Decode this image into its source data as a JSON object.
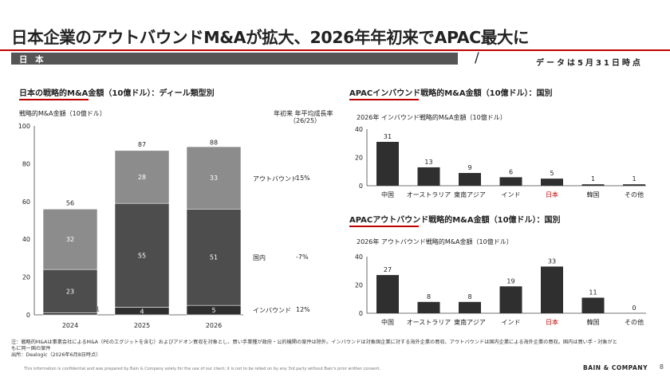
{
  "header": {
    "title": "日本企業のアウトバウンドM&Aが拡大、2026年年初来でAPAC最大に",
    "country_label": "日 本",
    "as_of": "データは5月31日時点"
  },
  "left_panel": {
    "title": "日本の戦略的M&A金額（10億ドル）：ディール類型別",
    "unit_label": "戦略的M&A金額（10億ドル）",
    "growth_header": "年初来 年平均成長率",
    "growth_subheader": "（26/25）",
    "growth_rows": [
      {
        "label": "アウトバウンド",
        "value": "15%"
      },
      {
        "label": "国内",
        "value": "-7%"
      },
      {
        "label": "インバウンド",
        "value": "12%"
      }
    ]
  },
  "chart_data": [
    {
      "type": "bar",
      "stacked": true,
      "title": "日本の戦略的M&A金額（10億ドル）：ディール類型別",
      "ylabel": "戦略的M&A金額（10億ドル）",
      "ylim": [
        0,
        100
      ],
      "yticks": [
        "0",
        "20",
        "40",
        "60",
        "80",
        "100"
      ],
      "categories": [
        "2024",
        "2025",
        "2026"
      ],
      "series": [
        {
          "name": "インバウンド",
          "values": [
            1,
            4,
            5
          ],
          "color": "#2f2f2f"
        },
        {
          "name": "国内",
          "values": [
            23,
            55,
            51
          ],
          "color": "#4d4d4d"
        },
        {
          "name": "アウトバウンド",
          "values": [
            32,
            28,
            33
          ],
          "color": "#8c8c8c"
        }
      ],
      "totals": [
        56,
        87,
        88
      ]
    },
    {
      "type": "bar",
      "title": "APACインバウンド戦略的M&A金額（10億ドル）：国別",
      "ylabel": "2026年 インバウンド戦略的M&A金額（10億ドル）",
      "ylim": [
        0,
        40
      ],
      "yticks": [
        "0",
        "20",
        "40"
      ],
      "categories": [
        "中国",
        "オーストラリア",
        "東南アジア",
        "インド",
        "日本",
        "韓国",
        "その他"
      ],
      "values": [
        31,
        13,
        9,
        6,
        5,
        1,
        1
      ],
      "highlight": "日本"
    },
    {
      "type": "bar",
      "title": "APACアウトバウンド戦略的M&A金額（10億ドル）：国別",
      "ylabel": "2026年 アウトバウンド戦略的M&A金額（10億ドル）",
      "ylim": [
        0,
        40
      ],
      "yticks": [
        "0",
        "20",
        "40"
      ],
      "categories": [
        "中国",
        "オーストラリア",
        "東南アジア",
        "インド",
        "日本",
        "韓国",
        "その他"
      ],
      "values": [
        27,
        8,
        8,
        19,
        33,
        11,
        0
      ],
      "highlight": "日本"
    }
  ],
  "colors": {
    "accent": "#c00000",
    "bar_dark": "#2f2f2f",
    "highlight_label": "#c00000"
  },
  "footer": {
    "note1": "注：戦略的M&Aは事業会社によるM&A（PEのエグジットを含む）およびアドオン買収を対象とし、買い手業種が政府・公的機関の案件は除外。インバウンドは対象国企業に対する海外企業の買収、アウトバウンドは国内企業による海外企業の買収。国内は買い手・対象がと",
    "note2": "もに同一国の案件",
    "source": "出所：Dealogic（2026年6月8日時点）",
    "confidential": "This information is confidential and was prepared by Bain & Company solely for the use of our client; it is not to be relied on by any 3rd party without Bain's prior written consent.",
    "brand": "BAIN & COMPANY",
    "page": "8"
  }
}
